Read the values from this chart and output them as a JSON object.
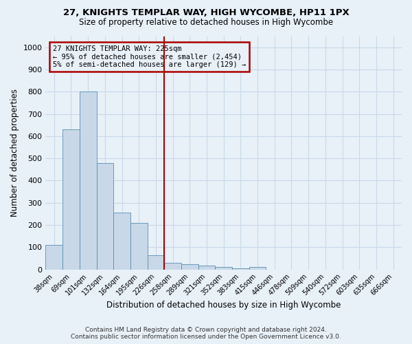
{
  "title": "27, KNIGHTS TEMPLAR WAY, HIGH WYCOMBE, HP11 1PX",
  "subtitle": "Size of property relative to detached houses in High Wycombe",
  "xlabel": "Distribution of detached houses by size in High Wycombe",
  "ylabel": "Number of detached properties",
  "bin_labels": [
    "38sqm",
    "69sqm",
    "101sqm",
    "132sqm",
    "164sqm",
    "195sqm",
    "226sqm",
    "258sqm",
    "289sqm",
    "321sqm",
    "352sqm",
    "383sqm",
    "415sqm",
    "446sqm",
    "478sqm",
    "509sqm",
    "540sqm",
    "572sqm",
    "603sqm",
    "635sqm",
    "666sqm"
  ],
  "bar_heights": [
    110,
    630,
    800,
    480,
    255,
    210,
    65,
    30,
    22,
    18,
    10,
    5,
    10,
    0,
    0,
    0,
    0,
    0,
    0,
    0,
    0
  ],
  "bar_color": "#c8d8e8",
  "bar_edge_color": "#5b8db0",
  "property_line_x": 6.5,
  "property_line_color": "#aa0000",
  "annotation_lines": [
    "27 KNIGHTS TEMPLAR WAY: 225sqm",
    "← 95% of detached houses are smaller (2,454)",
    "5% of semi-detached houses are larger (129) →"
  ],
  "annotation_box_color": "#aa0000",
  "ylim": [
    0,
    1050
  ],
  "yticks": [
    0,
    100,
    200,
    300,
    400,
    500,
    600,
    700,
    800,
    900,
    1000
  ],
  "grid_color": "#c8dae8",
  "background_color": "#e8f0f8",
  "footer_line1": "Contains HM Land Registry data © Crown copyright and database right 2024.",
  "footer_line2": "Contains public sector information licensed under the Open Government Licence v3.0."
}
